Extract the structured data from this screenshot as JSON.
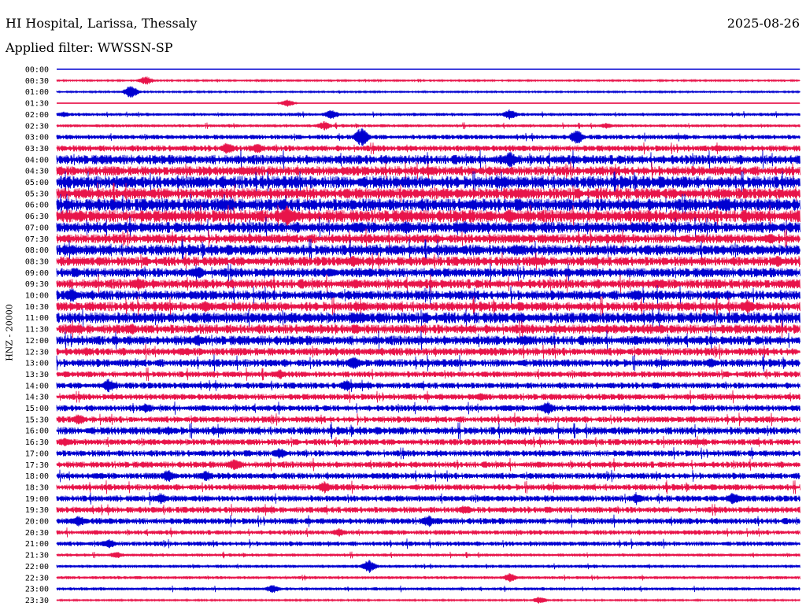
{
  "header": {
    "station": "HI Hospital, Larissa, Thessaly",
    "date": "2025-08-26",
    "filter": "Applied filter: WWSSN-SP"
  },
  "colors": {
    "trace_a": "#0000d0",
    "trace_b": "#e8144a",
    "background": "#ffffff"
  },
  "chart_data": {
    "type": "line",
    "title": "HI Hospital, Larissa, Thessaly",
    "ylabel": "HNZ - 20000",
    "date": "2025-08-26",
    "row_labels": [
      "00:00",
      "00:30",
      "01:00",
      "01:30",
      "02:00",
      "02:30",
      "03:00",
      "03:30",
      "04:00",
      "04:30",
      "05:00",
      "05:30",
      "06:00",
      "06:30",
      "07:00",
      "07:30",
      "08:00",
      "08:30",
      "09:00",
      "09:30",
      "10:00",
      "10:30",
      "11:00",
      "11:30",
      "12:00",
      "12:30",
      "13:00",
      "13:30",
      "14:00",
      "14:30",
      "15:00",
      "15:30",
      "16:00",
      "16:30",
      "17:00",
      "17:30",
      "18:00",
      "18:30",
      "19:00",
      "19:30",
      "20:00",
      "20:30",
      "21:00",
      "21:30",
      "22:00",
      "22:30",
      "23:00",
      "23:30"
    ],
    "series_colors": [
      "#0000d0",
      "#e8144a"
    ],
    "noise_level": [
      0,
      1,
      1,
      0,
      2,
      2,
      3,
      4,
      6,
      6,
      8,
      7,
      8,
      8,
      7,
      6,
      7,
      6,
      6,
      6,
      6,
      6,
      7,
      6,
      6,
      5,
      5,
      4,
      4,
      4,
      4,
      4,
      5,
      4,
      4,
      4,
      4,
      4,
      4,
      4,
      4,
      3,
      3,
      2,
      2,
      2,
      2,
      1
    ],
    "events": [
      [],
      [
        [
          0.12,
          6
        ]
      ],
      [
        [
          0.1,
          9
        ]
      ],
      [
        [
          0.31,
          5
        ]
      ],
      [
        [
          0.01,
          4
        ],
        [
          0.37,
          7
        ],
        [
          0.61,
          7
        ]
      ],
      [
        [
          0.36,
          6
        ],
        [
          0.74,
          4
        ]
      ],
      [
        [
          0.41,
          13
        ],
        [
          0.7,
          10
        ]
      ],
      [
        [
          0.23,
          8
        ],
        [
          0.27,
          7
        ],
        [
          0.89,
          5
        ]
      ],
      [
        [
          0.61,
          11
        ]
      ],
      [
        [
          0.25,
          6
        ],
        [
          0.5,
          6
        ]
      ],
      [
        [
          0.1,
          7
        ],
        [
          0.22,
          6
        ]
      ],
      [
        [
          0.63,
          7
        ],
        [
          0.9,
          6
        ]
      ],
      [
        [
          0.9,
          10
        ]
      ],
      [
        [
          0.31,
          14
        ],
        [
          0.61,
          10
        ]
      ],
      [
        [
          0.47,
          9
        ],
        [
          0.55,
          9
        ]
      ],
      [
        [
          0.96,
          8
        ]
      ],
      [
        [
          0.62,
          8
        ]
      ],
      [
        [
          0.4,
          8
        ],
        [
          0.97,
          8
        ]
      ],
      [
        [
          0.19,
          9
        ],
        [
          0.37,
          6
        ]
      ],
      [
        [
          0.11,
          9
        ],
        [
          0.99,
          6
        ]
      ],
      [
        [
          0.02,
          10
        ],
        [
          0.78,
          8
        ]
      ],
      [
        [
          0.2,
          8
        ],
        [
          0.93,
          10
        ]
      ],
      [
        [
          0.4,
          8
        ],
        [
          0.72,
          6
        ]
      ],
      [
        [
          0.1,
          8
        ],
        [
          0.73,
          6
        ]
      ],
      [
        [
          0.19,
          8
        ],
        [
          0.63,
          8
        ]
      ],
      [
        [
          0.04,
          6
        ]
      ],
      [
        [
          0.4,
          9
        ],
        [
          0.88,
          7
        ]
      ],
      [
        [
          0.3,
          7
        ]
      ],
      [
        [
          0.07,
          9
        ],
        [
          0.39,
          8
        ]
      ],
      [
        [
          0.57,
          6
        ]
      ],
      [
        [
          0.12,
          7
        ],
        [
          0.66,
          9
        ]
      ],
      [
        [
          0.03,
          8
        ]
      ],
      [
        [
          0.15,
          6
        ]
      ],
      [
        [
          0.01,
          6
        ]
      ],
      [
        [
          0.3,
          8
        ]
      ],
      [
        [
          0.24,
          9
        ]
      ],
      [
        [
          0.15,
          9
        ],
        [
          0.2,
          7
        ]
      ],
      [
        [
          0.36,
          8
        ]
      ],
      [
        [
          0.14,
          8
        ],
        [
          0.78,
          7
        ],
        [
          0.91,
          9
        ]
      ],
      [
        [
          0.55,
          7
        ]
      ],
      [
        [
          0.03,
          8
        ],
        [
          0.5,
          8
        ]
      ],
      [
        [
          0.38,
          6
        ]
      ],
      [
        [
          0.07,
          7
        ]
      ],
      [
        [
          0.08,
          5
        ]
      ],
      [
        [
          0.42,
          9
        ]
      ],
      [
        [
          0.61,
          6
        ]
      ],
      [
        [
          0.29,
          6
        ]
      ],
      [
        [
          0.65,
          5
        ]
      ]
    ]
  }
}
